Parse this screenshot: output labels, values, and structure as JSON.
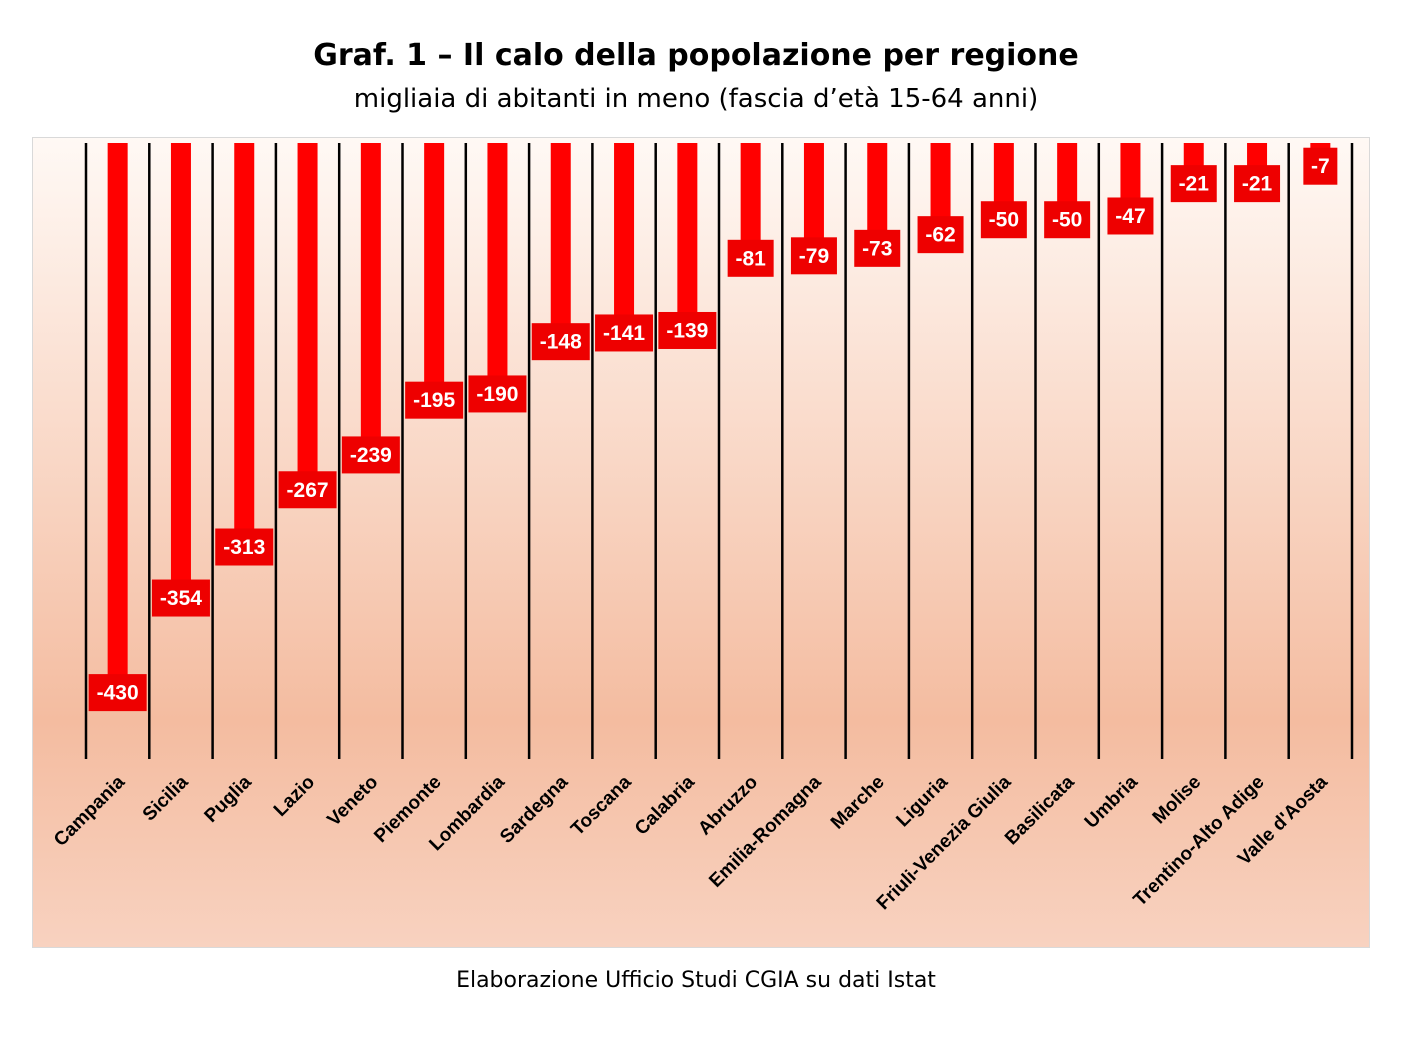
{
  "title": "Graf. 1 – Il calo della popolazione per regione",
  "subtitle": "migliaia di abitanti in meno (fascia d’età 15-64 anni)",
  "source": "Elaborazione Ufficio Studi CGIA su dati Istat",
  "colors": {
    "bar": "#ff0000",
    "label_box": "#ee0000",
    "background_top": "#fff9f5",
    "background_mid": "#f4bca0",
    "background_bottom": "#f8d2c0",
    "gridline": "#000000"
  },
  "chart_data": {
    "type": "bar",
    "orientation": "vertical-downward",
    "categories": [
      "Campania",
      "Sicilia",
      "Puglia",
      "Lazio",
      "Veneto",
      "Piemonte",
      "Lombardia",
      "Sardegna",
      "Toscana",
      "Calabria",
      "Abruzzo",
      "Emilia-Romagna",
      "Marche",
      "Liguria",
      "Friuli-Venezia Giulia",
      "Basilicata",
      "Umbria",
      "Molise",
      "Trentino-Alto Adige",
      "Valle d'Aosta"
    ],
    "values": [
      -430,
      -354,
      -313,
      -267,
      -239,
      -195,
      -190,
      -148,
      -141,
      -139,
      -81,
      -79,
      -73,
      -62,
      -50,
      -50,
      -47,
      -21,
      -21,
      -7
    ],
    "value_labels": [
      "-430",
      "-354",
      "-313",
      "-267",
      "-239",
      "-195",
      "-190",
      "-148",
      "-141",
      "-139",
      "-81",
      "-79",
      "-73",
      "-62",
      "-50",
      "-50",
      "-47",
      "-21",
      "-21",
      "-7"
    ],
    "ylim": [
      -495,
      0
    ],
    "grid": "vertical lines between categories",
    "legend": "none",
    "data_labels": true
  }
}
